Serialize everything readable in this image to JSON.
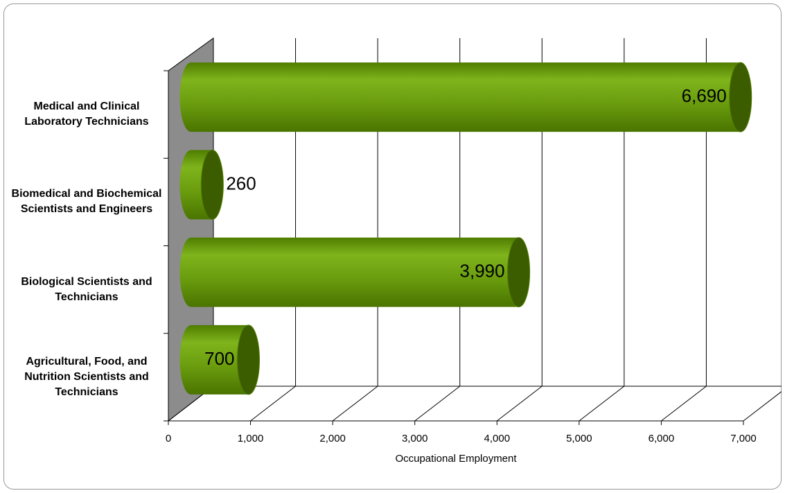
{
  "chart_data": {
    "type": "bar3d",
    "categories": [
      "Medical and Clinical Laboratory Technicians",
      "Biomedical and Biochemical Scientists and Engineers",
      "Biological Scientists and Technicians",
      "Agricultural, Food, and Nutrition Scientists and Technicians"
    ],
    "values": [
      6690,
      260,
      3990,
      700
    ],
    "value_labels": [
      "6,690",
      "260",
      "3,990",
      "700"
    ],
    "color": "#6b9c10",
    "x_label": "Occupational Employment",
    "xlim": [
      0,
      7000
    ],
    "xticks": [
      0,
      {
        "value": 1000,
        "label": "1,000"
      },
      {
        "value": 2000,
        "label": "2,000"
      },
      {
        "value": 3000,
        "label": "3,000"
      },
      {
        "value": 4000,
        "label": "4,000"
      },
      {
        "value": 5000,
        "label": "5,000"
      },
      {
        "value": 6000,
        "label": "6,000"
      },
      {
        "value": 7000,
        "label": "7,000"
      }
    ],
    "grid": true
  }
}
